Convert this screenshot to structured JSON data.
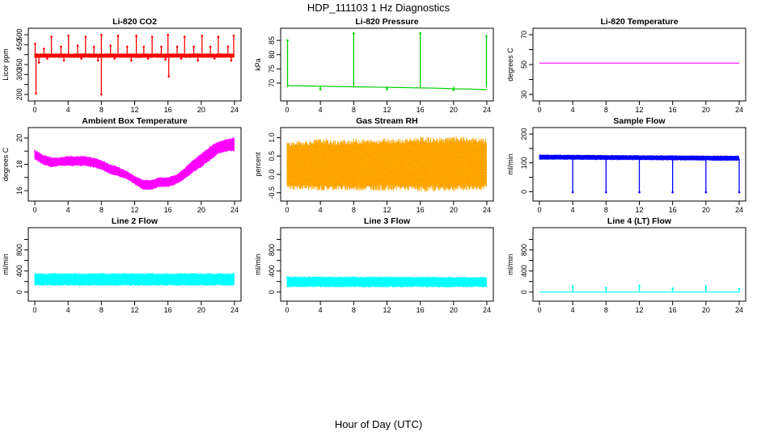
{
  "figure": {
    "title": "HDP_111103  1 Hz Diagnostics",
    "xlabel": "Hour of Day (UTC)"
  },
  "chart_data": [
    {
      "type": "line",
      "title": "Li-820 CO2",
      "ylabel": "Licor ppm",
      "color": "#ff0000",
      "xlim": [
        0,
        24
      ],
      "xticks": [
        0,
        4,
        8,
        12,
        16,
        20,
        24
      ],
      "ylim": [
        200,
        500
      ],
      "yticks": [
        200,
        250,
        300,
        350,
        400,
        450,
        500
      ],
      "ytick_labels": [
        "200",
        "",
        "300",
        "350",
        "",
        "450",
        "500"
      ],
      "series": [
        {
          "kind": "band",
          "x": [
            0,
            24
          ],
          "y_low": [
            385,
            385
          ],
          "y_high": [
            405,
            405
          ]
        },
        {
          "kind": "spikes_up",
          "x": [
            0.05,
            1.1,
            2.0,
            3.15,
            4.05,
            5.15,
            6.1,
            7.1,
            8.0,
            9.1,
            10.0,
            11.1,
            12.2,
            13.1,
            14.1,
            15.2,
            16.0,
            17.1,
            18.0,
            19.1,
            20.1,
            21.1,
            22.05,
            23.2,
            23.9
          ],
          "base": 400,
          "y": [
            455,
            430,
            490,
            440,
            495,
            445,
            490,
            440,
            500,
            445,
            495,
            440,
            495,
            440,
            490,
            440,
            500,
            440,
            490,
            440,
            495,
            440,
            490,
            440,
            495
          ]
        },
        {
          "kind": "spikes_down",
          "x": [
            0.15,
            8.0,
            16.1,
            0.5,
            1.5,
            3.5,
            5.6,
            7.6,
            9.6,
            11.6,
            13.6,
            15.7,
            17.6,
            19.6,
            21.6,
            23.6
          ],
          "base": 395,
          "y": [
            205,
            200,
            290,
            360,
            380,
            370,
            380,
            370,
            380,
            370,
            380,
            375,
            380,
            370,
            380,
            370
          ]
        }
      ]
    },
    {
      "type": "line",
      "title": "Li-820 Pressure",
      "ylabel": "kPa",
      "color": "#00cc00",
      "xlim": [
        0,
        24
      ],
      "xticks": [
        0,
        4,
        8,
        12,
        16,
        20,
        24
      ],
      "ylim": [
        66,
        87
      ],
      "yticks": [
        70,
        75,
        80,
        85
      ],
      "ytick_labels": [
        "70",
        "75",
        "80",
        "85"
      ],
      "series": [
        {
          "kind": "line",
          "x": [
            0,
            0.3,
            2,
            4,
            6,
            8,
            10,
            12,
            14,
            16,
            18,
            20,
            22,
            23.8,
            24
          ],
          "y": [
            69.2,
            69.1,
            69.0,
            68.9,
            68.8,
            68.7,
            68.6,
            68.5,
            68.4,
            68.3,
            68.2,
            68.0,
            67.9,
            67.7,
            67.7
          ]
        },
        {
          "kind": "spikes_up",
          "x": [
            0.05,
            8.0,
            16.0,
            23.95
          ],
          "base": 68.5,
          "y": [
            85,
            87.5,
            87.5,
            86.5
          ]
        },
        {
          "kind": "spikes_down",
          "x": [
            4.0,
            12.0,
            20.0
          ],
          "base": 68.8,
          "y": [
            67.8,
            67.8,
            67.6
          ]
        }
      ]
    },
    {
      "type": "line",
      "title": "Li-820 Temperature",
      "ylabel": "degrees C",
      "color": "#ff00ff",
      "xlim": [
        0,
        24
      ],
      "xticks": [
        0,
        4,
        8,
        12,
        16,
        20,
        24
      ],
      "ylim": [
        30,
        70
      ],
      "yticks": [
        30,
        40,
        50,
        60,
        70
      ],
      "ytick_labels": [
        "30",
        "",
        "50",
        "",
        "70"
      ],
      "series": [
        {
          "kind": "line",
          "x": [
            0,
            24
          ],
          "y": [
            51,
            51
          ]
        }
      ]
    },
    {
      "type": "area",
      "title": "Ambient Box Temperature",
      "ylabel": "degrees C",
      "color": "#ff00ff",
      "xlim": [
        0,
        24
      ],
      "xticks": [
        0,
        4,
        8,
        12,
        16,
        20,
        24
      ],
      "ylim": [
        15.7,
        20.3
      ],
      "yticks": [
        16,
        17,
        18,
        19,
        20
      ],
      "ytick_labels": [
        "16",
        "",
        "18",
        "",
        "20"
      ],
      "series": [
        {
          "kind": "band",
          "x": [
            0,
            1,
            2,
            3,
            4,
            5,
            6,
            7,
            8,
            9,
            10,
            11,
            12,
            13,
            14,
            15,
            16,
            17,
            18,
            19,
            20,
            21,
            22,
            23,
            24
          ],
          "y_low": [
            18.4,
            18.0,
            17.8,
            17.9,
            17.9,
            17.9,
            17.9,
            17.8,
            17.6,
            17.3,
            17.1,
            16.9,
            16.5,
            16.1,
            16.1,
            16.3,
            16.3,
            16.5,
            16.9,
            17.4,
            17.8,
            18.3,
            18.8,
            19.0,
            19.0
          ],
          "y_high": [
            19.1,
            18.7,
            18.5,
            18.5,
            18.6,
            18.6,
            18.6,
            18.5,
            18.3,
            18.0,
            17.8,
            17.5,
            17.1,
            16.8,
            16.8,
            17.0,
            17.0,
            17.2,
            17.7,
            18.3,
            18.8,
            19.3,
            19.7,
            19.9,
            20.0
          ]
        }
      ]
    },
    {
      "type": "area",
      "title": "Gas Stream RH",
      "ylabel": "percent",
      "color": "#ffa500",
      "color2": "#c8a000",
      "xlim": [
        0,
        24
      ],
      "xticks": [
        0,
        4,
        8,
        12,
        16,
        20,
        24
      ],
      "ylim": [
        -0.55,
        1.1
      ],
      "yticks": [
        -0.5,
        0.0,
        0.5,
        1.0
      ],
      "ytick_labels": [
        "-0.5",
        "0.0",
        "0.5",
        "1.0"
      ],
      "series": [
        {
          "kind": "band",
          "x": [
            0,
            2,
            4,
            6,
            8,
            10,
            12,
            14,
            16,
            18,
            20,
            22,
            24
          ],
          "y_low": [
            -0.35,
            -0.35,
            -0.38,
            -0.36,
            -0.38,
            -0.36,
            -0.38,
            -0.36,
            -0.4,
            -0.38,
            -0.38,
            -0.36,
            -0.35
          ],
          "y_high": [
            0.82,
            0.85,
            0.9,
            0.86,
            0.9,
            0.88,
            0.92,
            0.9,
            0.95,
            0.92,
            0.95,
            0.93,
            0.9
          ]
        }
      ]
    },
    {
      "type": "line",
      "title": "Sample Flow",
      "ylabel": "ml/min",
      "color": "#0000ff",
      "xlim": [
        0,
        24
      ],
      "xticks": [
        0,
        4,
        8,
        12,
        16,
        20,
        24
      ],
      "ylim": [
        -10,
        200
      ],
      "yticks": [
        0,
        50,
        100,
        150,
        200
      ],
      "ytick_labels": [
        "0",
        "",
        "100",
        "",
        "200"
      ],
      "series": [
        {
          "kind": "band",
          "x": [
            0,
            24
          ],
          "y_low": [
            112,
            108
          ],
          "y_high": [
            128,
            124
          ]
        },
        {
          "kind": "spikes_down",
          "x": [
            4.0,
            8.0,
            12.0,
            16.0,
            20.0,
            24.0
          ],
          "base": 115,
          "y": [
            -2,
            -2,
            -2,
            -2,
            -2,
            -2
          ]
        }
      ]
    },
    {
      "type": "area",
      "title": "Line 2 Flow",
      "ylabel": "ml/min",
      "color": "#00ffff",
      "xlim": [
        0,
        24
      ],
      "xticks": [
        0,
        4,
        8,
        12,
        16,
        20,
        24
      ],
      "ylim": [
        -50,
        1100
      ],
      "yticks": [
        0,
        200,
        400,
        600,
        800,
        1000
      ],
      "ytick_labels": [
        "0",
        "",
        "400",
        "",
        "800",
        ""
      ],
      "series": [
        {
          "kind": "band",
          "x": [
            0,
            24
          ],
          "y_low": [
            130,
            130
          ],
          "y_high": [
            350,
            350
          ]
        }
      ]
    },
    {
      "type": "area",
      "title": "Line 3 Flow",
      "ylabel": "ml/min",
      "color": "#00ffff",
      "xlim": [
        0,
        24
      ],
      "xticks": [
        0,
        4,
        8,
        12,
        16,
        20,
        24
      ],
      "ylim": [
        -50,
        1100
      ],
      "yticks": [
        0,
        200,
        400,
        600,
        800,
        1000
      ],
      "ytick_labels": [
        "0",
        "",
        "400",
        "",
        "800",
        ""
      ],
      "series": [
        {
          "kind": "band",
          "x": [
            0,
            24
          ],
          "y_low": [
            100,
            100
          ],
          "y_high": [
            290,
            280
          ]
        }
      ]
    },
    {
      "type": "line",
      "title": "Line 4 (LT) Flow",
      "ylabel": "ml/min",
      "color": "#00ffff",
      "xlim": [
        0,
        24
      ],
      "xticks": [
        0,
        4,
        8,
        12,
        16,
        20,
        24
      ],
      "ylim": [
        -50,
        1100
      ],
      "yticks": [
        0,
        200,
        400,
        600,
        800,
        1000
      ],
      "ytick_labels": [
        "0",
        "",
        "400",
        "",
        "800",
        ""
      ],
      "series": [
        {
          "kind": "line",
          "x": [
            0,
            24
          ],
          "y": [
            0,
            0
          ]
        },
        {
          "kind": "spikes_up",
          "x": [
            4.0,
            8.0,
            12.0,
            16.0,
            20.0,
            24.0
          ],
          "base": 0,
          "y": [
            110,
            80,
            120,
            70,
            110,
            60
          ]
        }
      ]
    }
  ]
}
